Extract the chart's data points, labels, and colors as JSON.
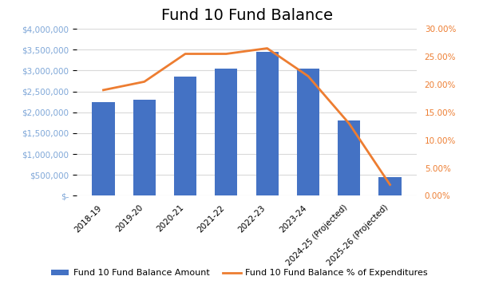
{
  "title": "Fund 10 Fund Balance",
  "categories": [
    "2018-19",
    "2019-20",
    "2020-21",
    "2021-22",
    "2022-23",
    "2023-24",
    "2024-25 (Projected)",
    "2025-26 (Projected)"
  ],
  "bar_values": [
    2250000,
    2300000,
    2850000,
    3050000,
    3450000,
    3050000,
    1800000,
    450000
  ],
  "line_values": [
    0.19,
    0.205,
    0.255,
    0.255,
    0.265,
    0.215,
    0.13,
    0.02
  ],
  "bar_color": "#4472C4",
  "line_color": "#ED7D31",
  "left_axis_color": "#7FA7D8",
  "left_ylim": [
    0,
    4000000
  ],
  "right_ylim": [
    0,
    0.3
  ],
  "left_yticks": [
    0,
    500000,
    1000000,
    1500000,
    2000000,
    2500000,
    3000000,
    3500000,
    4000000
  ],
  "right_yticks": [
    0.0,
    0.05,
    0.1,
    0.15,
    0.2,
    0.25,
    0.3
  ],
  "legend_bar_label": "Fund 10 Fund Balance Amount",
  "legend_line_label": "Fund 10 Fund Balance % of Expenditures",
  "title_fontsize": 14,
  "tick_fontsize": 7.5,
  "legend_fontsize": 8,
  "background_color": "#ffffff",
  "grid_color": "#D9D9D9"
}
